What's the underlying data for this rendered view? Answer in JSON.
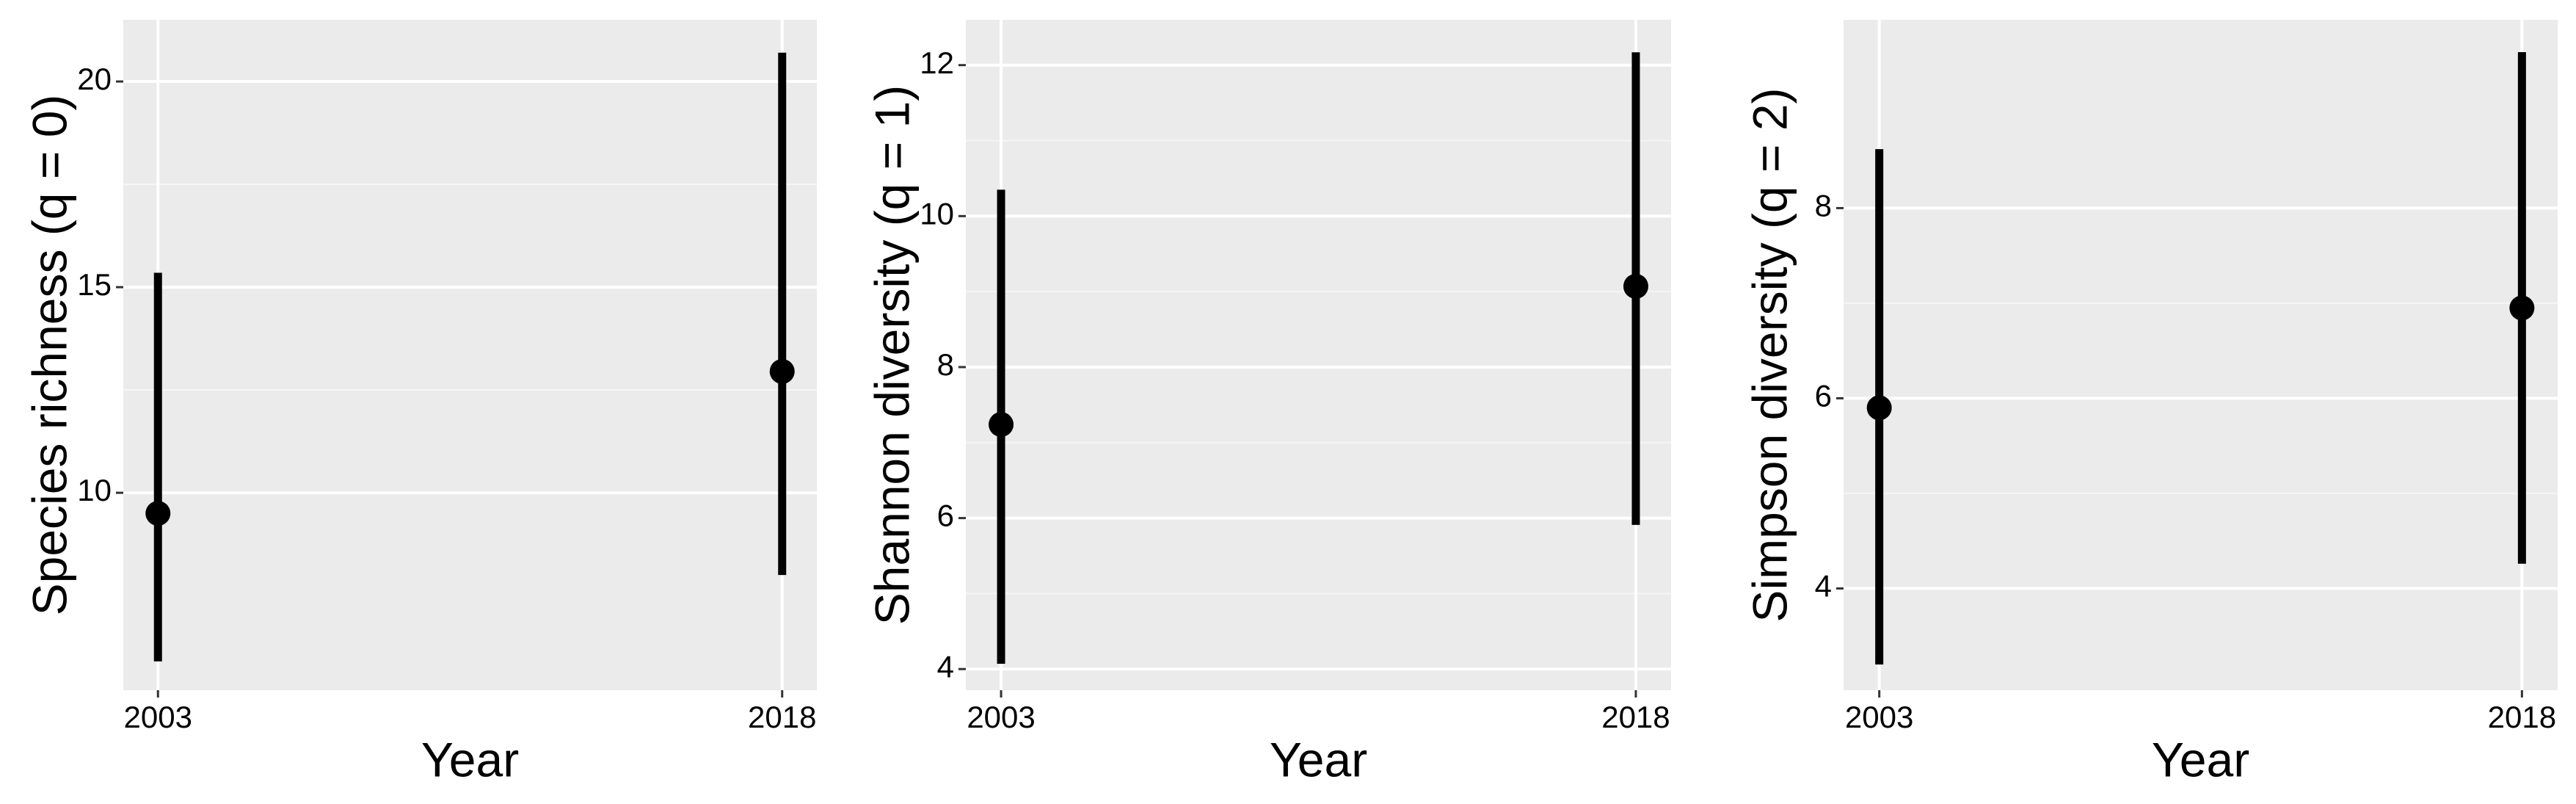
{
  "chart_data": [
    {
      "type": "pointrange",
      "x_label": "Year",
      "y_label": "Species richness (q = 0)",
      "categories": [
        "2003",
        "2018"
      ],
      "values": [
        9.5,
        12.95
      ],
      "lower": [
        5.9,
        8.0
      ],
      "upper": [
        15.35,
        20.7
      ],
      "color": "#000000",
      "ylim": [
        5.2,
        21.5
      ],
      "yticks": [
        10,
        15,
        20
      ],
      "grid": true
    },
    {
      "type": "pointrange",
      "x_label": "Year",
      "y_label": "Shannon diversity (q = 1)",
      "categories": [
        "2003",
        "2018"
      ],
      "values": [
        7.24,
        9.07
      ],
      "lower": [
        4.07,
        5.91
      ],
      "upper": [
        10.35,
        12.17
      ],
      "color": "#000000",
      "ylim": [
        3.72,
        12.6
      ],
      "yticks": [
        4,
        6,
        8,
        10,
        12
      ],
      "grid": true
    },
    {
      "type": "pointrange",
      "x_label": "Year",
      "y_label": "Simpson diversity (q = 2)",
      "categories": [
        "2003",
        "2018"
      ],
      "values": [
        5.9,
        6.95
      ],
      "lower": [
        3.2,
        4.26
      ],
      "upper": [
        8.62,
        9.64
      ],
      "color": "#000000",
      "ylim": [
        2.93,
        9.98
      ],
      "yticks": [
        4,
        6,
        8
      ],
      "grid": true
    }
  ]
}
